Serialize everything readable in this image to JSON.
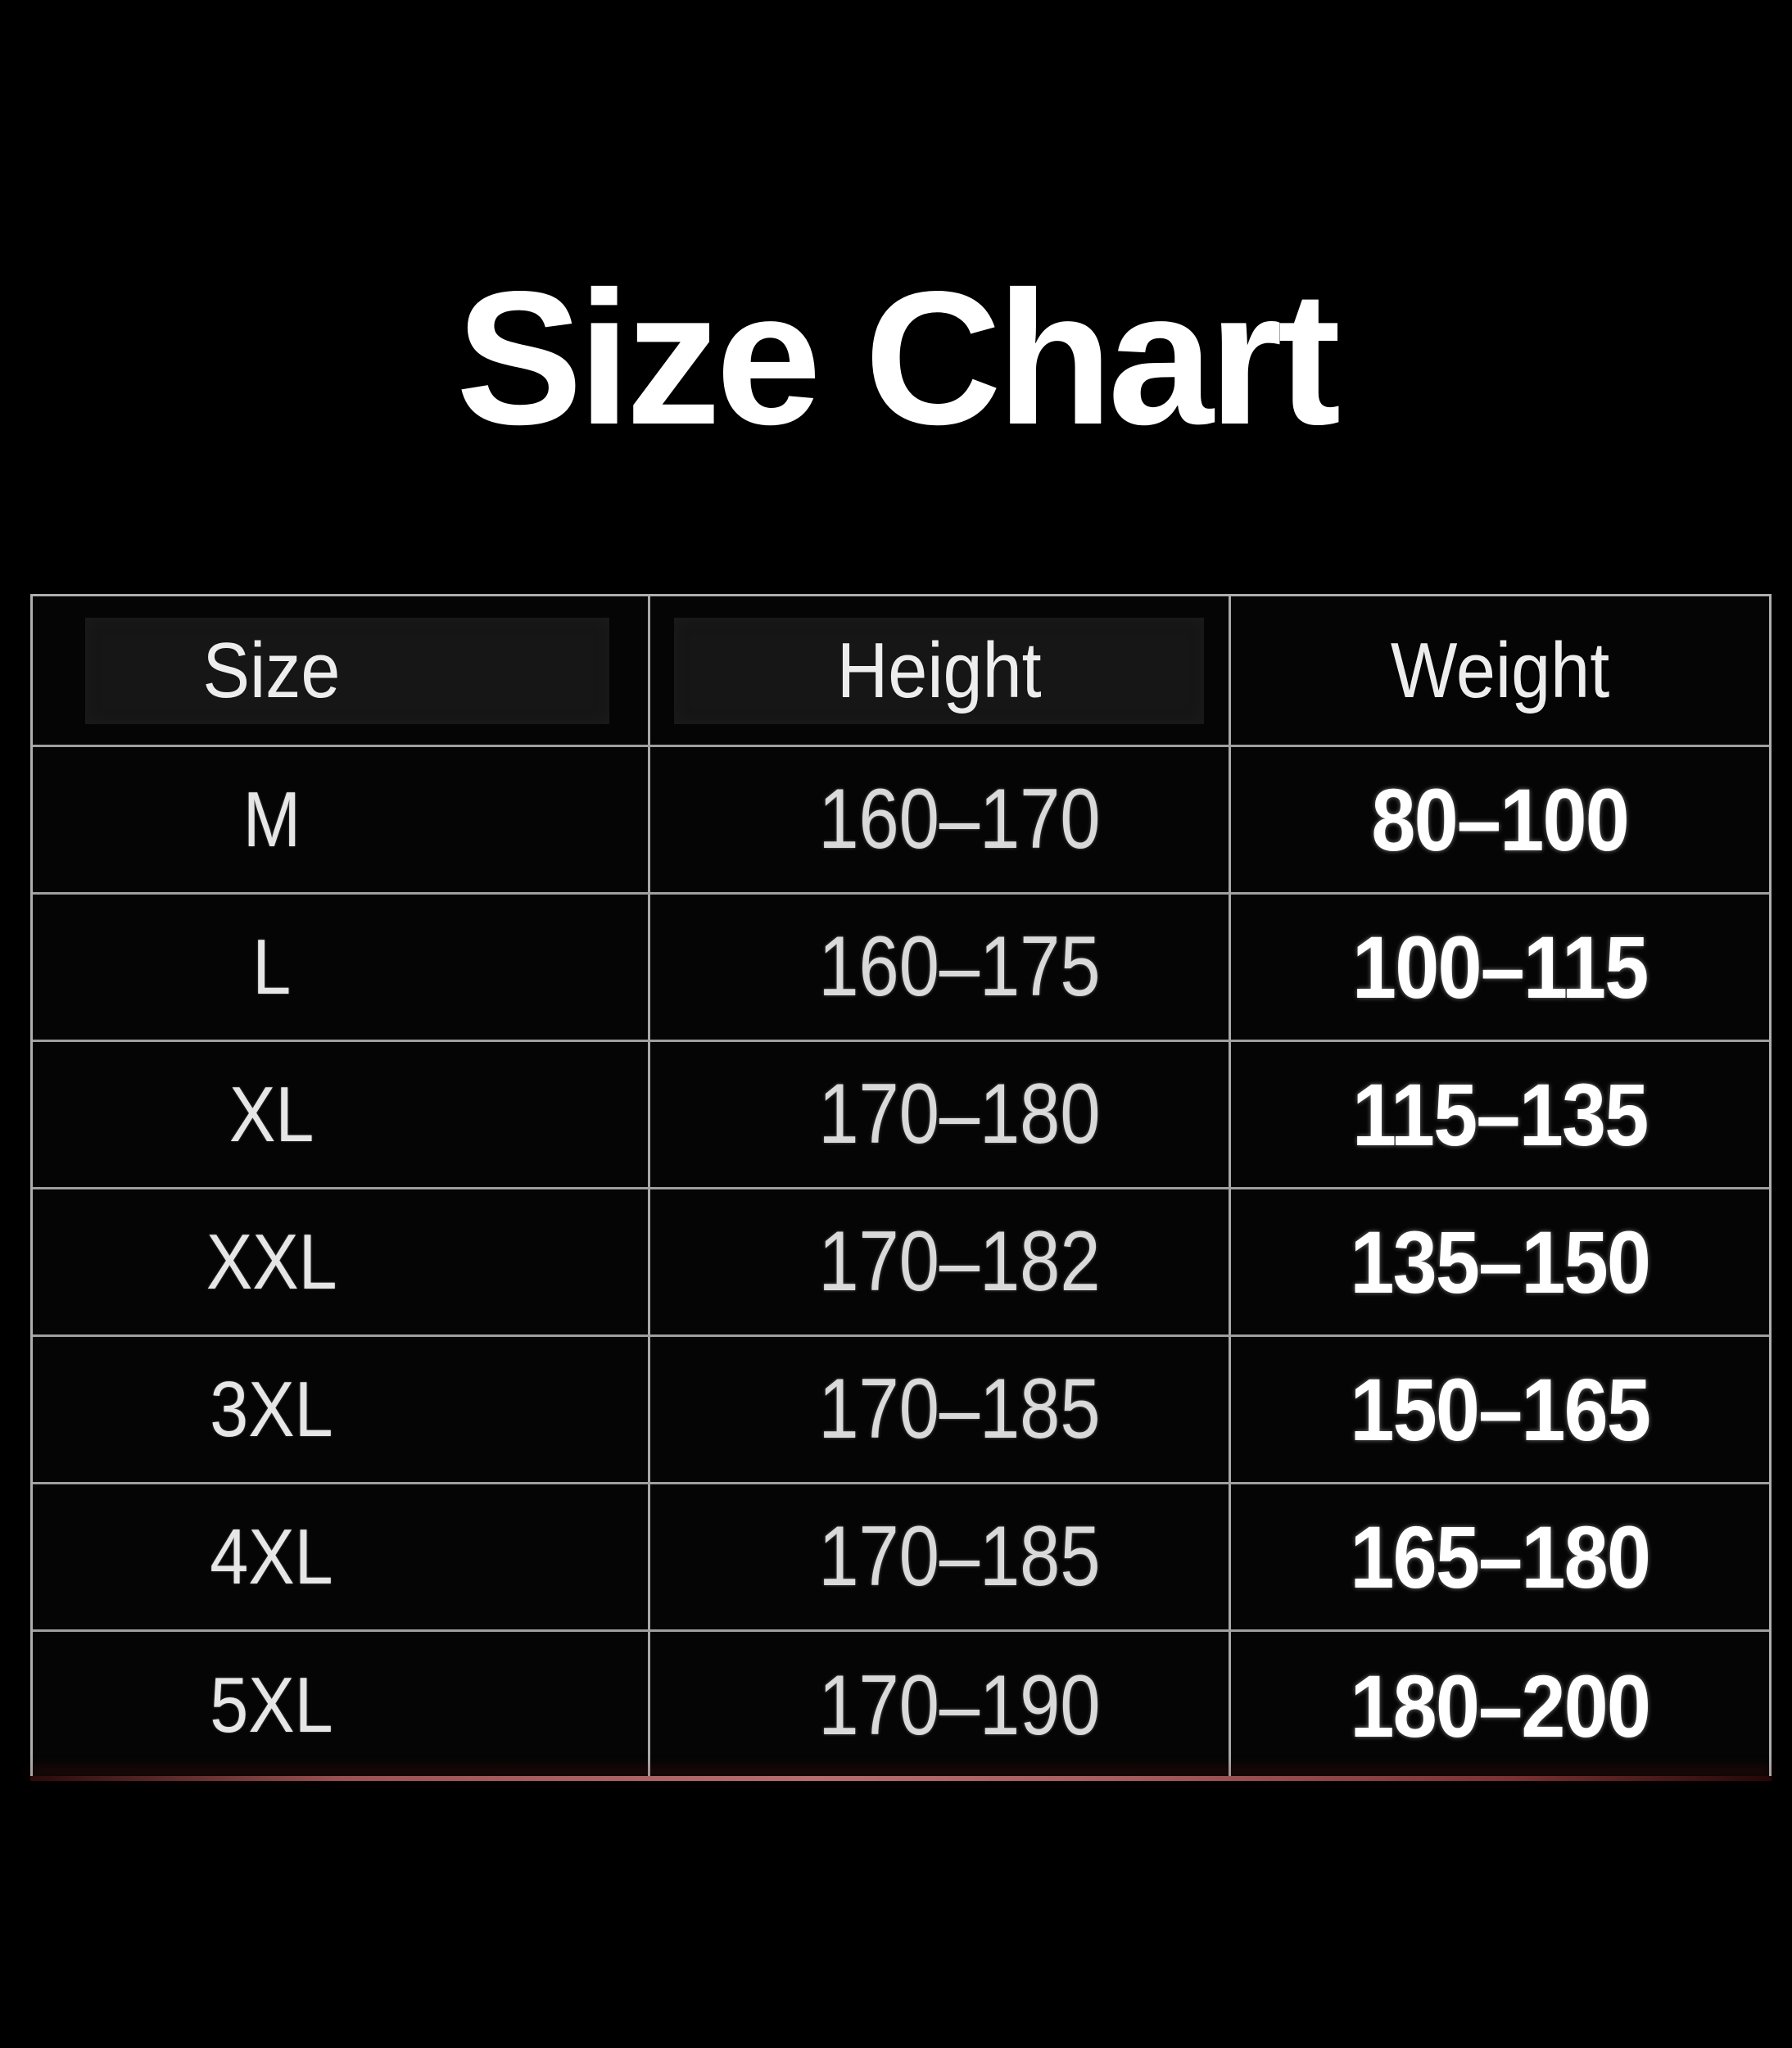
{
  "title": "Size Chart",
  "table": {
    "headers": [
      "Size",
      "Height",
      "Weight"
    ],
    "rows": [
      {
        "size": "M",
        "height": "160–170",
        "weight": "80–100"
      },
      {
        "size": "L",
        "height": "160–175",
        "weight": "100–115"
      },
      {
        "size": "XL",
        "height": "170–180",
        "weight": "115–135"
      },
      {
        "size": "XXL",
        "height": "170–182",
        "weight": "135–150"
      },
      {
        "size": "3XL",
        "height": "170–185",
        "weight": "150–165"
      },
      {
        "size": "4XL",
        "height": "170–185",
        "weight": "165–180"
      },
      {
        "size": "5XL",
        "height": "170–190",
        "weight": "180–200"
      }
    ],
    "colors": {
      "page_background": "#000000",
      "table_background": "#050505",
      "grid_line": "#a8a8a8",
      "header_patch": "#161616",
      "bottom_accent_red": "#9c5252",
      "text_primary": "#ffffff",
      "text_secondary": "#d9d9d9"
    }
  },
  "chart_data": {
    "type": "table",
    "title": "Size Chart",
    "columns": [
      "Size",
      "Height",
      "Weight"
    ],
    "rows": [
      [
        "M",
        "160–170",
        "80–100"
      ],
      [
        "L",
        "160–175",
        "100–115"
      ],
      [
        "XL",
        "170–180",
        "115–135"
      ],
      [
        "XXL",
        "170–182",
        "135–150"
      ],
      [
        "3XL",
        "170–185",
        "150–165"
      ],
      [
        "4XL",
        "170–185",
        "165–180"
      ],
      [
        "5XL",
        "170–190",
        "180–200"
      ]
    ]
  }
}
